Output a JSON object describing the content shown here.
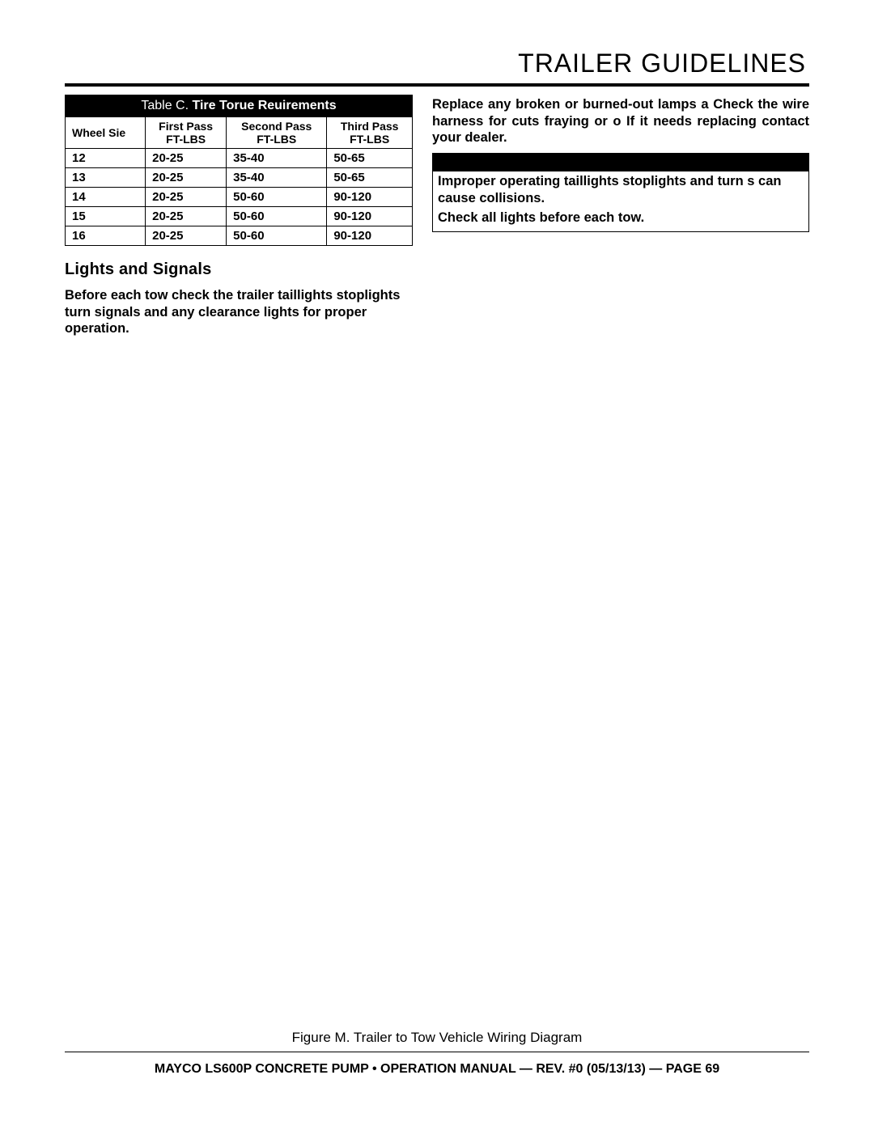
{
  "page": {
    "title": "TRAILER GUIDELINES",
    "figure_caption": "Figure M. Trailer to Tow Vehicle Wiring Diagram",
    "footer": "MAYCO LS600P CONCRETE PUMP • OPERATION MANUAL — REV. #0 (05/13/13) — PAGE 69"
  },
  "table": {
    "title_prefix": "Table C. ",
    "title_main": "Tire Torue Reuirements",
    "columns": {
      "c0": "Wheel Sie",
      "c1a": "First Pass",
      "c1b": "FT-LBS",
      "c2a": "Second Pass",
      "c2b": "FT-LBS",
      "c3a": "Third Pass",
      "c3b": "FT-LBS"
    },
    "rows": [
      {
        "w": "12",
        "p1": "20-25",
        "p2": "35-40",
        "p3": "50-65"
      },
      {
        "w": "13",
        "p1": "20-25",
        "p2": "35-40",
        "p3": "50-65"
      },
      {
        "w": "14",
        "p1": "20-25",
        "p2": "50-60",
        "p3": "90-120"
      },
      {
        "w": "15",
        "p1": "20-25",
        "p2": "50-60",
        "p3": "90-120"
      },
      {
        "w": "16",
        "p1": "20-25",
        "p2": "50-60",
        "p3": "90-120"
      }
    ]
  },
  "left": {
    "heading": "Lights and Signals",
    "para": "Before each tow check the trailer taillights stoplights turn signals and any clearance lights for proper operation."
  },
  "right": {
    "para": "Replace any broken or burned-out lamps a Check the wire harness for cuts fraying or o If it needs replacing contact your dealer.",
    "caution1": "Improper operating taillights stoplights and turn s can cause collisions.",
    "caution2": "Check all lights before each tow."
  }
}
